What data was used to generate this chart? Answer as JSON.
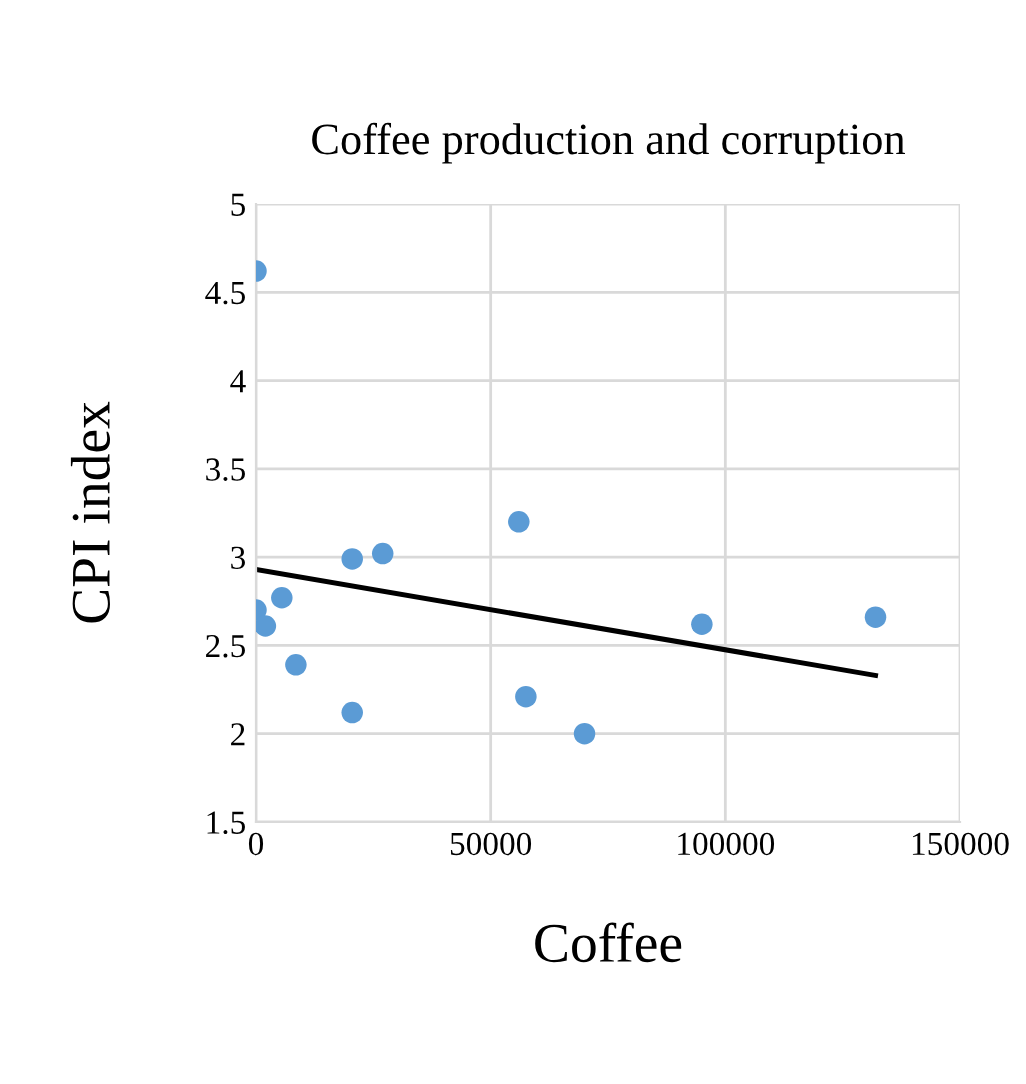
{
  "chart_data": {
    "type": "scatter",
    "title": "Coffee production and corruption",
    "xlabel": "Coffee",
    "ylabel": "CPI index",
    "series": [
      {
        "marker": "circle",
        "color": "#5b9bd5",
        "x": [
          0,
          0,
          2000,
          5500,
          8500,
          20500,
          20500,
          27000,
          56000,
          57500,
          70000,
          95000,
          132000
        ],
        "values": [
          4.62,
          2.7,
          2.61,
          2.77,
          2.39,
          2.99,
          2.12,
          3.02,
          3.2,
          2.21,
          2.0,
          2.62,
          2.66
        ]
      },
      {
        "type": "line",
        "color": "#000000",
        "x": [
          0,
          132000
        ],
        "values": [
          2.93,
          2.33
        ]
      }
    ],
    "xlim": [
      0,
      150000
    ],
    "xticks": [
      0,
      50000,
      100000,
      150000
    ],
    "ylim": [
      1.5,
      5
    ],
    "yticks": [
      1.5,
      2,
      2.5,
      3,
      3.5,
      4,
      4.5,
      5
    ],
    "grid": true
  }
}
